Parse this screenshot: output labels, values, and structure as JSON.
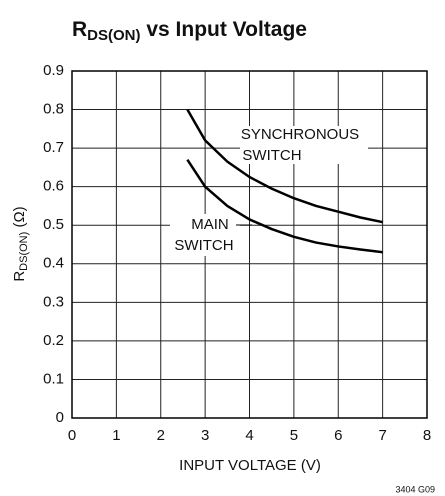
{
  "chart_data": {
    "type": "line",
    "title": [
      "R",
      "DS(ON)",
      " vs Input Voltage"
    ],
    "xlabel": "INPUT VOLTAGE (V)",
    "ylabel": [
      "R",
      "DS(ON)",
      " (Ω)"
    ],
    "x": [
      2.6,
      3,
      3.5,
      4,
      4.5,
      5,
      5.5,
      6,
      6.5,
      7
    ],
    "series": [
      {
        "name": "SYNCHRONOUS SWITCH",
        "color": "#000000",
        "values": [
          0.8,
          0.72,
          0.665,
          0.625,
          0.595,
          0.57,
          0.55,
          0.535,
          0.52,
          0.508
        ]
      },
      {
        "name": "MAIN SWITCH",
        "color": "#000000",
        "values": [
          0.67,
          0.6,
          0.55,
          0.515,
          0.49,
          0.47,
          0.455,
          0.445,
          0.437,
          0.43
        ]
      }
    ],
    "annotations": [
      "SYNCHRONOUS",
      "SWITCH",
      "MAIN",
      "SWITCH"
    ],
    "xlim": [
      0,
      8
    ],
    "xticks": [
      0,
      1,
      2,
      3,
      4,
      5,
      6,
      7,
      8
    ],
    "ylim": [
      0,
      0.9
    ],
    "yticks": [
      0,
      0.1,
      0.2,
      0.3,
      0.4,
      0.5,
      0.6,
      0.7,
      0.8,
      0.9
    ],
    "grid": true,
    "footnote": "3404 G09"
  }
}
